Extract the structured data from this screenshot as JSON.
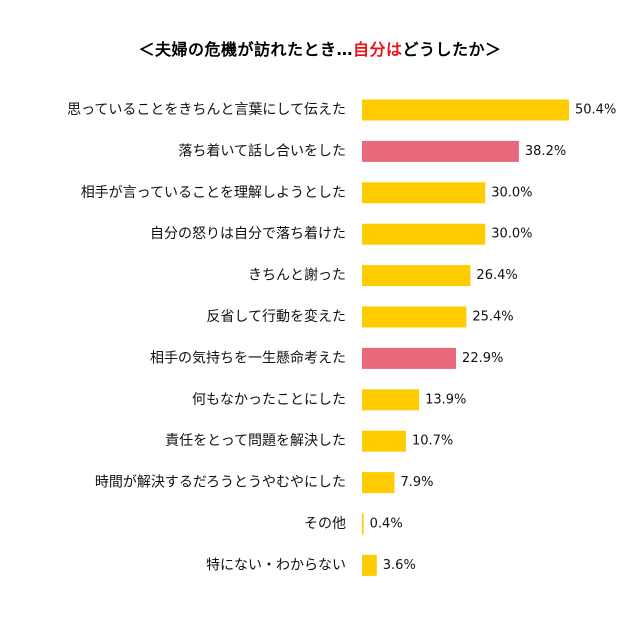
{
  "chart_data": {
    "type": "bar",
    "orientation": "horizontal",
    "title_parts": [
      {
        "text": "＜夫婦の危機が訪れたとき…",
        "accent": false
      },
      {
        "text": "自分は",
        "accent": true
      },
      {
        "text": "どうしたか＞",
        "accent": false
      }
    ],
    "categories": [
      "思っていることをきちんと言葉にして伝えた",
      "落ち着いて話し合いをした",
      "相手が言っていることを理解しようとした",
      "自分の怒りは自分で落ち着けた",
      "きちんと謝った",
      "反省して行動を変えた",
      "相手の気持ちを一生懸命考えた",
      "何もなかったことにした",
      "責任をとって問題を解決した",
      "時間が解決するだろうとうやむやにした",
      "その他",
      "特にない・わからない"
    ],
    "values": [
      50.4,
      38.2,
      30.0,
      30.0,
      26.4,
      25.4,
      22.9,
      13.9,
      10.7,
      7.9,
      0.4,
      3.6
    ],
    "value_labels": [
      "50.4%",
      "38.2%",
      "30.0%",
      "30.0%",
      "26.4%",
      "25.4%",
      "22.9%",
      "13.9%",
      "10.7%",
      "7.9%",
      "0.4%",
      "3.6%"
    ],
    "highlighted": [
      false,
      true,
      false,
      false,
      false,
      false,
      true,
      false,
      false,
      false,
      false,
      false
    ],
    "xlim": [
      0,
      50.4
    ],
    "grid": false,
    "legend": "none",
    "colors": {
      "bar": "#ffcc00",
      "highlight": "#e8697a",
      "title_accent": "#e8141b"
    }
  }
}
